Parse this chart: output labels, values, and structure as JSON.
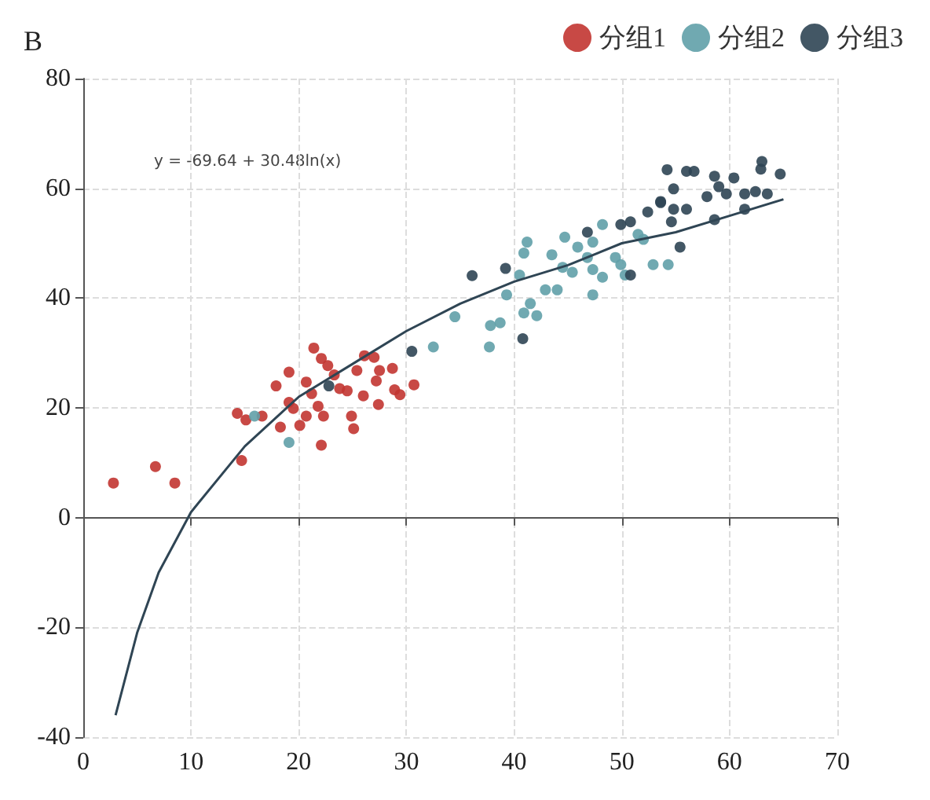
{
  "chart_data": {
    "type": "scatter",
    "title": "B",
    "annotations": [
      "y = -69.64 + 30.48ln(x)"
    ],
    "xlim": [
      0,
      70
    ],
    "xticks": [
      0,
      10,
      20,
      30,
      40,
      50,
      60,
      70
    ],
    "ylim": [
      -40,
      80
    ],
    "yticks": [
      -40,
      -20,
      0,
      20,
      40,
      60,
      80
    ],
    "grid": true,
    "legend": "top right",
    "marker": "circle",
    "series": [
      {
        "name": "分组1",
        "color": "#c23531",
        "x": [
          2.8,
          6.7,
          8.5,
          14.3,
          15.1,
          16.6,
          18.3,
          19.1,
          19.5,
          20.1,
          20.7,
          22.1,
          14.7,
          21.8,
          19.1,
          21.4,
          22.1,
          22.7,
          23.3,
          23.8,
          25.4,
          26.1,
          27,
          27.5,
          27.2,
          28.7,
          29.4,
          26,
          24.5,
          21.2,
          20.7,
          24.9,
          27.4,
          28.9,
          30.7,
          17.9,
          25.1,
          22.3
        ],
        "values": [
          6.3,
          9.3,
          6.3,
          19,
          17.8,
          18.5,
          16.5,
          21,
          19.9,
          16.8,
          18.5,
          13.2,
          10.4,
          20.3,
          26.5,
          30.9,
          29,
          27.7,
          26,
          23.5,
          26.8,
          29.5,
          29.2,
          26.8,
          24.9,
          27.2,
          22.4,
          22.2,
          23.1,
          22.6,
          24.7,
          18.5,
          20.6,
          23.3,
          24.2,
          24,
          16.2,
          18.5
        ]
      },
      {
        "name": "分组2",
        "color": "#61a0a8",
        "x": [
          15.9,
          19.1,
          32.5,
          34.5,
          37.7,
          37.8,
          38.7,
          39.3,
          40.9,
          42.1,
          41.5,
          40.5,
          41.2,
          40.9,
          43.5,
          44.7,
          45.9,
          47.3,
          48.2,
          46.8,
          44.5,
          45.4,
          47.3,
          48.2,
          49.4,
          49.9,
          50.3,
          51.5,
          54.3,
          44,
          47.3,
          42.9,
          52.9,
          52
        ],
        "values": [
          18.5,
          13.7,
          31.1,
          36.6,
          31.1,
          35,
          35.5,
          40.6,
          37.3,
          36.8,
          39,
          44.2,
          50.2,
          48.2,
          47.9,
          51.1,
          49.3,
          50.2,
          53.4,
          47.4,
          45.6,
          44.7,
          45.2,
          43.8,
          47.4,
          46.1,
          44.2,
          51.6,
          46.1,
          41.5,
          40.6,
          41.5,
          46.1,
          50.7
        ]
      },
      {
        "name": "分组3",
        "color": "#2f4554",
        "x": [
          22.8,
          30.5,
          39.2,
          36.1,
          40.8,
          46.8,
          49.9,
          53.6,
          50.8,
          54.2,
          56,
          56.7,
          58.6,
          60.4,
          63,
          62.9,
          64.7,
          54.8,
          53.6,
          59,
          59.7,
          57.9,
          61.4,
          62.4,
          63.5,
          52.4,
          56,
          54.8,
          58.6,
          61.4,
          50.8,
          55.4,
          54.6
        ],
        "values": [
          24,
          30.3,
          45.4,
          44.1,
          32.6,
          52,
          53.4,
          57.4,
          44.2,
          63.4,
          63.1,
          63.1,
          62.2,
          61.9,
          64.9,
          63.5,
          62.6,
          59.9,
          57.6,
          60.3,
          59,
          58.5,
          59,
          59.4,
          59,
          55.7,
          56.2,
          56.2,
          54.3,
          56.2,
          53.9,
          49.3,
          53.9
        ]
      },
      {
        "type": "line",
        "color": "#2f4554",
        "marker": "none",
        "x": [
          3,
          5,
          7,
          10,
          15,
          20,
          25,
          30,
          35,
          40,
          45,
          50,
          55,
          60,
          65
        ],
        "values": [
          -36,
          -21,
          -10,
          1,
          13,
          22,
          28,
          34,
          39,
          43,
          46,
          50,
          52,
          55,
          58
        ]
      }
    ]
  }
}
